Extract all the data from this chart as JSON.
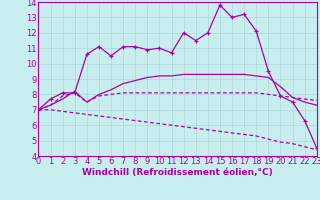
{
  "bg_color": "#c8eef0",
  "line_color": "#aa00aa",
  "grid_color": "#b0d8d8",
  "xlabel": "Windchill (Refroidissement éolien,°C)",
  "xlabel_fontsize": 6.5,
  "tick_fontsize": 6,
  "ylim": [
    4,
    14
  ],
  "xlim": [
    0,
    23
  ],
  "yticks": [
    4,
    5,
    6,
    7,
    8,
    9,
    10,
    11,
    12,
    13,
    14
  ],
  "xticks": [
    0,
    1,
    2,
    3,
    4,
    5,
    6,
    7,
    8,
    9,
    10,
    11,
    12,
    13,
    14,
    15,
    16,
    17,
    18,
    19,
    20,
    21,
    22,
    23
  ],
  "line1_x": [
    0,
    1,
    2,
    3,
    4,
    5,
    6,
    7,
    8,
    9,
    10,
    11,
    12,
    13,
    14,
    15,
    16,
    17,
    18,
    19,
    20,
    21,
    22,
    23
  ],
  "line1_y": [
    7.0,
    7.7,
    8.1,
    8.1,
    10.6,
    11.1,
    10.5,
    11.1,
    11.1,
    10.9,
    11.0,
    10.7,
    12.0,
    11.5,
    12.0,
    13.8,
    13.0,
    13.2,
    12.1,
    9.5,
    7.9,
    7.5,
    6.3,
    4.5
  ],
  "line2_x": [
    0,
    1,
    2,
    3,
    4,
    5,
    6,
    7,
    8,
    9,
    10,
    11,
    12,
    13,
    14,
    15,
    16,
    17,
    18,
    19,
    20,
    21,
    22,
    23
  ],
  "line2_y": [
    7.0,
    7.3,
    7.7,
    8.2,
    7.5,
    8.0,
    8.3,
    8.7,
    8.9,
    9.1,
    9.2,
    9.2,
    9.3,
    9.3,
    9.3,
    9.3,
    9.3,
    9.3,
    9.2,
    9.1,
    8.5,
    7.8,
    7.5,
    7.3
  ],
  "line3_x": [
    0,
    1,
    2,
    3,
    4,
    5,
    6,
    7,
    8,
    9,
    10,
    11,
    12,
    13,
    14,
    15,
    16,
    17,
    18,
    19,
    20,
    21,
    22,
    23
  ],
  "line3_y": [
    7.0,
    7.3,
    7.9,
    8.1,
    7.5,
    7.9,
    8.0,
    8.1,
    8.1,
    8.1,
    8.1,
    8.1,
    8.1,
    8.1,
    8.1,
    8.1,
    8.1,
    8.1,
    8.1,
    8.0,
    7.9,
    7.8,
    7.7,
    7.6
  ],
  "line4_x": [
    0,
    1,
    2,
    3,
    4,
    5,
    6,
    7,
    8,
    9,
    10,
    11,
    12,
    13,
    14,
    15,
    16,
    17,
    18,
    19,
    20,
    21,
    22,
    23
  ],
  "line4_y": [
    7.0,
    7.0,
    6.9,
    6.8,
    6.7,
    6.6,
    6.5,
    6.4,
    6.3,
    6.2,
    6.1,
    6.0,
    5.9,
    5.8,
    5.7,
    5.6,
    5.5,
    5.4,
    5.3,
    5.1,
    4.9,
    4.8,
    4.6,
    4.4
  ]
}
